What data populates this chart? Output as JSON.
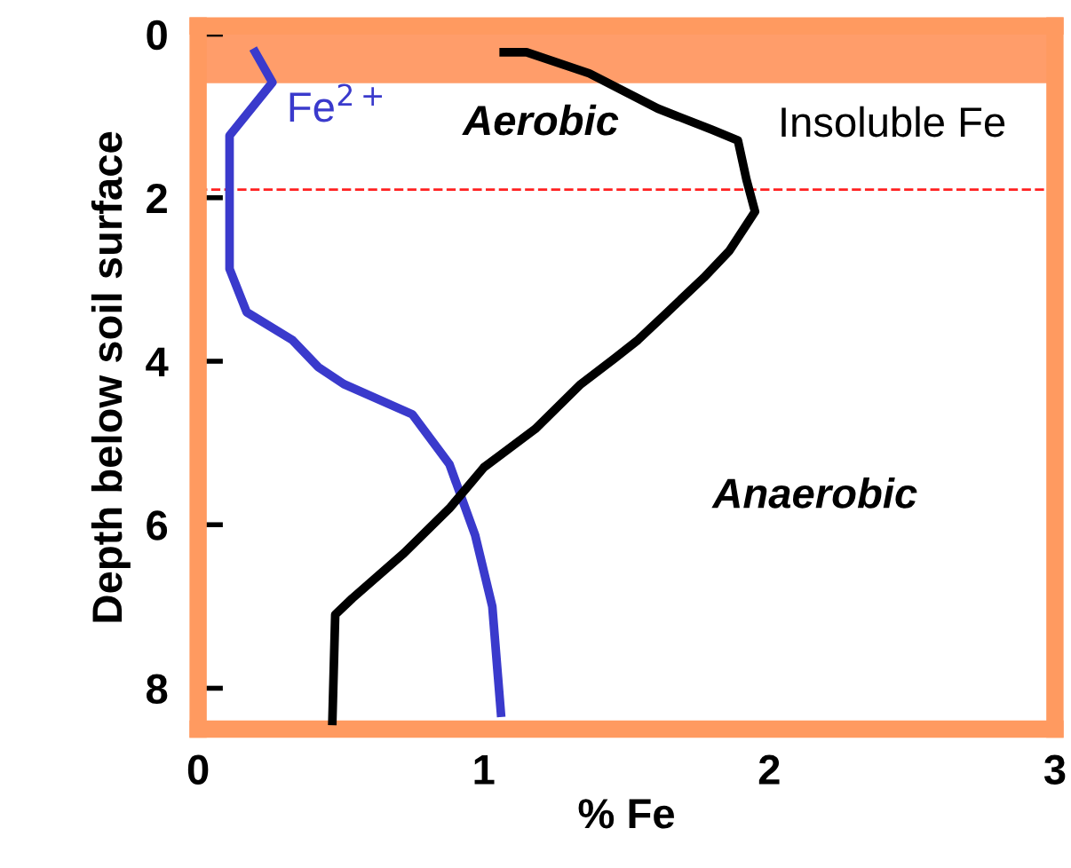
{
  "chart_data": {
    "type": "line",
    "xlabel": "% Fe",
    "ylabel": "Depth below soil surface",
    "series": [
      {
        "name": "Fe$^{2+}$",
        "color": "#3a3acc",
        "x": [
          0.2,
          0.26,
          0.11,
          0.11,
          0.17,
          0.33,
          0.42,
          0.51,
          0.75,
          0.88,
          0.97,
          1.03,
          1.06
        ],
        "values": [
          0.22,
          0.59,
          1.24,
          2.87,
          3.4,
          3.74,
          4.07,
          4.28,
          4.65,
          5.26,
          6.13,
          7.0,
          8.3
        ]
      },
      {
        "name": "Insoluble Fe",
        "color": "#000000",
        "x": [
          1.07,
          1.15,
          1.37,
          1.61,
          1.8,
          1.89,
          1.92,
          1.95,
          1.86,
          1.77,
          1.64,
          1.54,
          1.46,
          1.34,
          1.18,
          1.0,
          0.88,
          0.72,
          0.54,
          0.48,
          0.47
        ],
        "values": [
          0.22,
          0.22,
          0.48,
          0.91,
          1.17,
          1.3,
          1.78,
          2.17,
          2.65,
          2.98,
          3.41,
          3.74,
          3.96,
          4.28,
          4.83,
          5.3,
          5.8,
          6.35,
          6.9,
          7.1,
          8.4
        ]
      }
    ],
    "xlim": [
      0,
      3
    ],
    "ylim": [
      8.5,
      -0.1
    ],
    "xticks": [
      0,
      1,
      2,
      3
    ],
    "yticks": [
      0,
      2,
      4,
      6,
      8
    ],
    "bands": [
      {
        "axis": "y",
        "from": -0.1,
        "to": 0.6,
        "label": "Aerobic",
        "color": "#ff8c50"
      }
    ],
    "ref_lines": [
      {
        "axis": "y",
        "value": 1.9,
        "color": "#ff2020",
        "line_style": "dashed"
      }
    ],
    "annotations": [
      "Anaerobic"
    ],
    "grid": false,
    "legend": false,
    "marker": "none",
    "line_style": "solid"
  }
}
